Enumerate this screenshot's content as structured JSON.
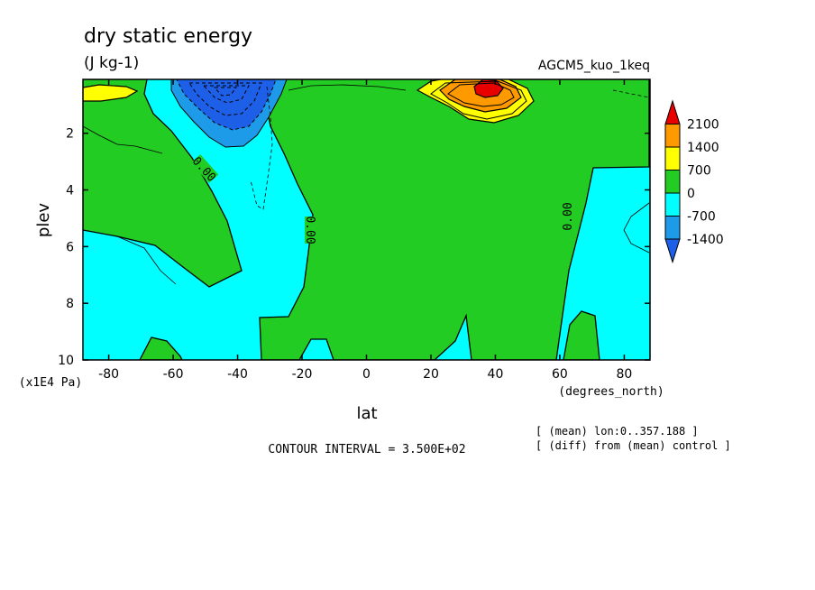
{
  "chart_data": {
    "type": "heatmap",
    "title": "dry static energy",
    "units": "(J kg-1)",
    "experiment": "AGCM5_kuo_1keq",
    "xlabel": "lat",
    "x_units": "(degrees_north)",
    "ylabel": "plev",
    "y_units": "(x1E4 Pa)",
    "x_ticks": [
      "-80",
      "-60",
      "-40",
      "-20",
      "0",
      "20",
      "40",
      "60",
      "80"
    ],
    "y_ticks": [
      "2",
      "4",
      "6",
      "8",
      "10"
    ],
    "xlim": [
      -88,
      88
    ],
    "ylim": [
      0.1,
      10
    ],
    "y_inverted": true,
    "grid": false,
    "contour_interval_label": "CONTOUR INTERVAL = 3.500E+02",
    "notes": [
      "[ (mean) lon:0..357.188 ]",
      "[ (diff) from (mean) control ]"
    ],
    "zero_contour_labels": [
      "0.00",
      "0.00",
      "0.00"
    ],
    "colorbar": {
      "labels": [
        "2100",
        "1400",
        "700",
        "0",
        "-700",
        "-1400"
      ],
      "levels": [
        -2100,
        -1400,
        -700,
        0,
        700,
        1400,
        2100
      ],
      "colors": [
        "#1e5fe8",
        "#1e9be8",
        "#00ffff",
        "#22cc22",
        "#ffff00",
        "#ff9900",
        "#e80000"
      ],
      "placement": "right"
    },
    "features": [
      {
        "name": "negative core",
        "lat": -45,
        "plev": 0.8,
        "value": -2100
      },
      {
        "name": "positive core",
        "lat": 38,
        "plev": 0.6,
        "value": 2100
      }
    ]
  }
}
